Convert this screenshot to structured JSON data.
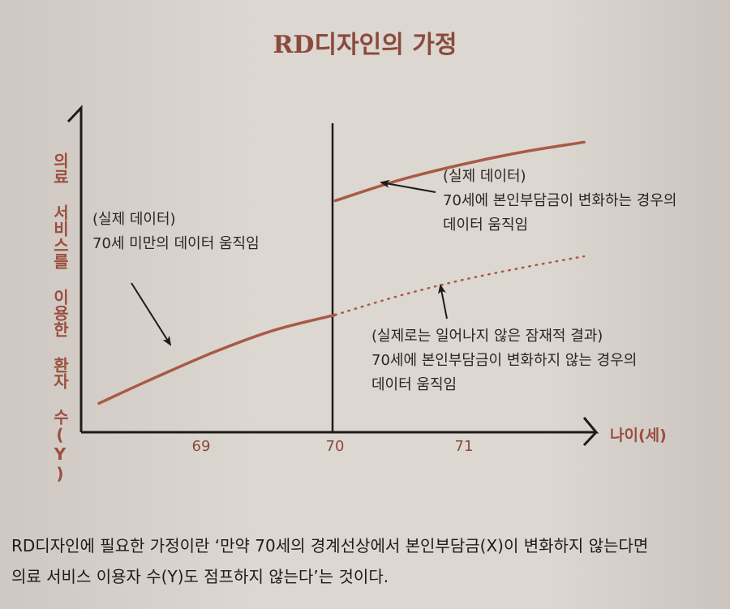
{
  "title": "RD디자인의 가정",
  "chart_data": {
    "type": "line",
    "ylabel": "의료 서비스를 이용한 환자 수(Y)",
    "xlabel": "나이(세)",
    "x_ticks": [
      "69",
      "70",
      "71"
    ],
    "cutoff_x": 70,
    "series": [
      {
        "style": "solid",
        "segment": "below-cutoff",
        "x": [
          68.1,
          68.5,
          69.0,
          69.5,
          70.0
        ],
        "y": [
          1.0,
          2.6,
          4.5,
          6.1,
          7.2
        ]
      },
      {
        "style": "solid",
        "segment": "above-cutoff",
        "x": [
          70.0,
          70.5,
          71.0,
          71.5,
          72.0
        ],
        "y": [
          15.2,
          16.6,
          17.7,
          18.6,
          19.3
        ]
      },
      {
        "style": "dotted",
        "segment": "counterfactual",
        "x": [
          70.0,
          70.5,
          71.0,
          71.5,
          72.0
        ],
        "y": [
          7.2,
          8.5,
          9.6,
          10.5,
          11.3
        ]
      }
    ],
    "annotations": [
      {
        "id": "below",
        "lines": [
          "(실제 데이터)",
          "70세 미만의 데이터 움직임"
        ]
      },
      {
        "id": "above",
        "lines": [
          "(실제 데이터)",
          "70세에 본인부담금이 변화하는 경우의",
          "데이터 움직임"
        ]
      },
      {
        "id": "counterfactual",
        "lines": [
          "(실제로는 일어나지 않은 잠재적 결과)",
          "70세에 본인부담금이 변화하지 않는 경우의",
          "데이터 움직임"
        ]
      }
    ],
    "colors": {
      "curve": "#a85a46",
      "axis": "#1f1b1a",
      "label": "#9a4f3f"
    }
  },
  "caption": {
    "line1": "RD디자인에 필요한 가정이란 ‘만약 70세의 경계선상에서 본인부담금(X)이 변화하지 않는다면",
    "line2": "의료 서비스 이용자 수(Y)도 점프하지 않는다’는 것이다."
  }
}
